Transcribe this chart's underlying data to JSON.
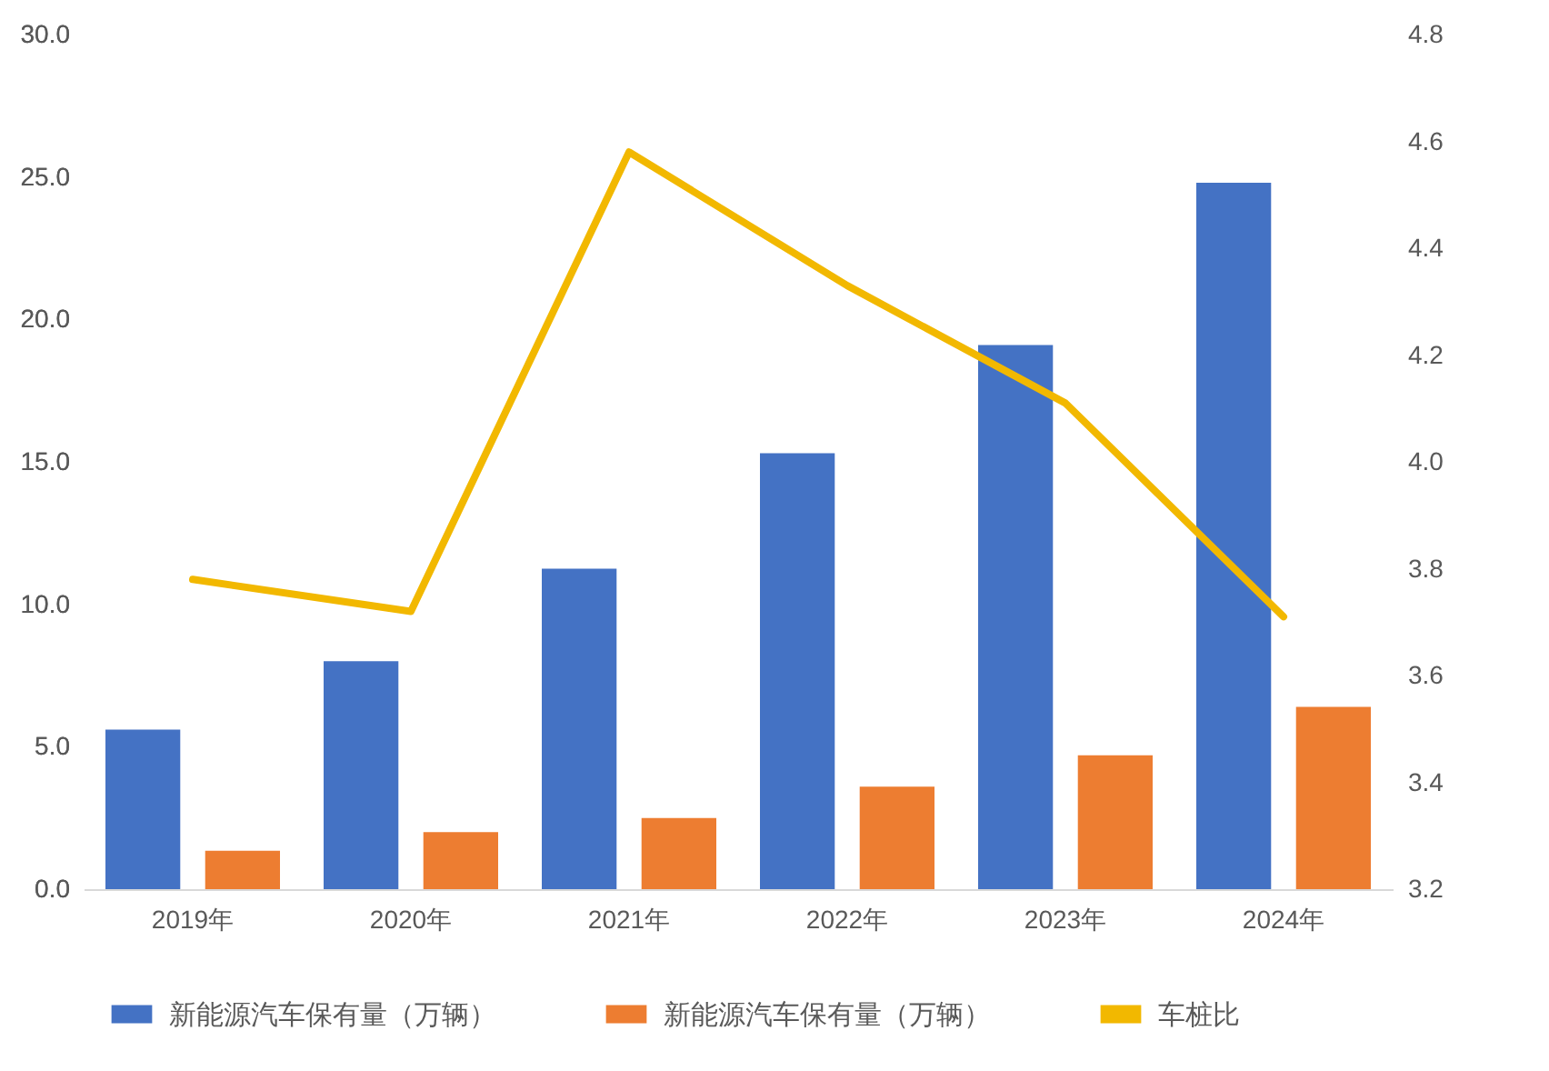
{
  "chart_data": {
    "type": "bar",
    "categories": [
      "2019年",
      "2020年",
      "2021年",
      "2022年",
      "2023年",
      "2024年"
    ],
    "series": [
      {
        "name": "新能源汽车保有量（万辆）",
        "color": "#4472c4",
        "values": [
          5.6,
          8.0,
          11.25,
          15.3,
          19.1,
          24.8
        ]
      },
      {
        "name": "新能源汽车保有量（万辆）",
        "color": "#ed7d31",
        "values": [
          1.35,
          2.0,
          2.5,
          3.6,
          4.7,
          6.4
        ]
      },
      {
        "name": "车桩比",
        "type": "line",
        "axis": "y2",
        "color": "#f2b800",
        "values": [
          3.78,
          3.72,
          4.58,
          4.33,
          4.11,
          3.71
        ]
      }
    ],
    "ylim": [
      0,
      30
    ],
    "yticks": [
      {
        "value": 0,
        "label": "0.0"
      },
      {
        "value": 5,
        "label": "5.0"
      },
      {
        "value": 10,
        "label": "10.0"
      },
      {
        "value": 15,
        "label": "15.0"
      },
      {
        "value": 20,
        "label": "20.0"
      },
      {
        "value": 25,
        "label": "25.0"
      },
      {
        "value": 30,
        "label": "30.0"
      }
    ],
    "y2lim": [
      3.2,
      4.8
    ],
    "y2ticks": [
      3.2,
      3.4,
      3.6,
      3.8,
      {
        "value": 4,
        "label": "4.0"
      },
      4.2,
      4.4,
      4.6,
      4.8
    ],
    "grid": false,
    "legend": "bottom"
  }
}
